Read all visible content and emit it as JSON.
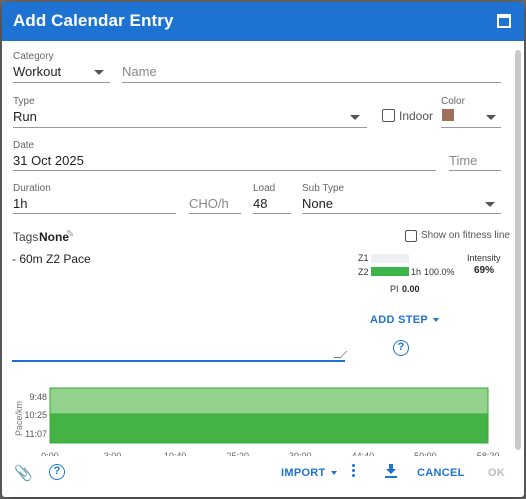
{
  "dialog": {
    "title": "Add Calendar Entry"
  },
  "category": {
    "label": "Category",
    "value": "Workout"
  },
  "name": {
    "placeholder": "Name"
  },
  "type": {
    "label": "Type",
    "value": "Run"
  },
  "indoor": {
    "label": "Indoor",
    "checked": false
  },
  "color": {
    "label": "Color",
    "swatch": "#a0705a"
  },
  "date": {
    "label": "Date",
    "value": "31 Oct 2025"
  },
  "time": {
    "placeholder": "Time"
  },
  "duration": {
    "label": "Duration",
    "value": "1h"
  },
  "cho": {
    "placeholder": "CHO/h"
  },
  "load": {
    "label": "Load",
    "value": "48"
  },
  "subtype": {
    "label": "Sub Type",
    "value": "None"
  },
  "tags": {
    "label": "Tags",
    "value": "None"
  },
  "fitness_line": {
    "label": "Show on fitness line",
    "checked": false
  },
  "description": "- 60m Z2 Pace",
  "zones": [
    {
      "name": "Z1",
      "fraction": 0,
      "duration": "",
      "percent": ""
    },
    {
      "name": "Z2",
      "fraction": 1.0,
      "duration": "1h",
      "percent": "100.0%"
    }
  ],
  "intensity": {
    "label": "Intensity",
    "value": "69%"
  },
  "pi": {
    "label": "PI",
    "value": "0.00"
  },
  "add_step": "ADD STEP",
  "chart_data": {
    "type": "area",
    "ylabel": "Pace/km",
    "yticks": [
      "9:48",
      "10:25",
      "11:07"
    ],
    "xtick_label_fragments": [
      "0:00",
      "3:00",
      "10:40",
      "25:20",
      "30:00",
      "44:40",
      "50:00",
      "58:20"
    ],
    "series": [
      {
        "values": [
          1,
          1
        ]
      }
    ],
    "colors": {
      "fill_light": "#92d28c",
      "fill_dark": "#44b244",
      "stroke": "#3aa83a"
    }
  },
  "footer": {
    "import": "IMPORT",
    "cancel": "CANCEL",
    "ok": "OK"
  },
  "colors": {
    "primary": "#1e73d2",
    "zone2": "#3bb54a"
  }
}
